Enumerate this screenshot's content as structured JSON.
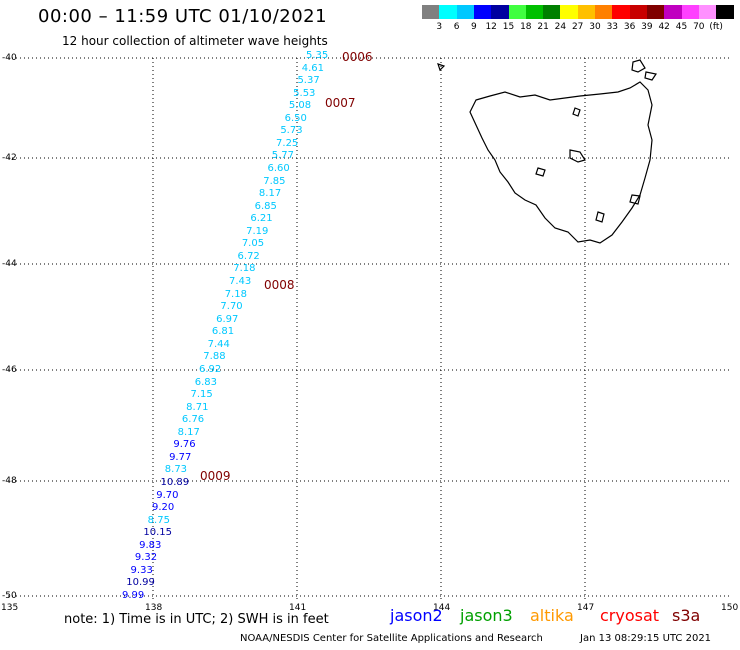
{
  "header": {
    "title": "00:00 – 11:59 UTC 01/10/2021",
    "subtitle": "12 hour collection of altimeter wave heights"
  },
  "colorbar": {
    "colors": [
      "#808080",
      "#00ffff",
      "#00c8ff",
      "#0000ff",
      "#0000a0",
      "#40ff40",
      "#00c000",
      "#008000",
      "#ffff00",
      "#ffc000",
      "#ff8000",
      "#ff0000",
      "#c80000",
      "#800000",
      "#c000c0",
      "#ff40ff",
      "#ff90ff",
      "#000000"
    ],
    "labels": [
      "3",
      "6",
      "9",
      "12",
      "15",
      "18",
      "21",
      "24",
      "27",
      "30",
      "33",
      "36",
      "39",
      "42",
      "45",
      "70",
      "(ft)"
    ]
  },
  "map": {
    "lat_labels": [
      "-40",
      "-42",
      "-44",
      "-46",
      "-48",
      "-50"
    ],
    "lon_labels": [
      "135",
      "138",
      "141",
      "144",
      "147",
      "150"
    ],
    "coastline_color": "#000000"
  },
  "wave_heights": [
    {
      "value": "5.35",
      "color": "#00c8ff"
    },
    {
      "value": "4.61",
      "color": "#00c8ff"
    },
    {
      "value": "5.37",
      "color": "#00c8ff"
    },
    {
      "value": "5.53",
      "color": "#00c8ff"
    },
    {
      "value": "5.08",
      "color": "#00c8ff"
    },
    {
      "value": "6.50",
      "color": "#00c8ff"
    },
    {
      "value": "5.73",
      "color": "#00c8ff"
    },
    {
      "value": "7.25",
      "color": "#00c8ff"
    },
    {
      "value": "5.77",
      "color": "#00c8ff"
    },
    {
      "value": "6.60",
      "color": "#00c8ff"
    },
    {
      "value": "7.85",
      "color": "#00c8ff"
    },
    {
      "value": "8.17",
      "color": "#00c8ff"
    },
    {
      "value": "6.85",
      "color": "#00c8ff"
    },
    {
      "value": "6.21",
      "color": "#00c8ff"
    },
    {
      "value": "7.19",
      "color": "#00c8ff"
    },
    {
      "value": "7.05",
      "color": "#00c8ff"
    },
    {
      "value": "6.72",
      "color": "#00c8ff"
    },
    {
      "value": "7.18",
      "color": "#00c8ff"
    },
    {
      "value": "7.43",
      "color": "#00c8ff"
    },
    {
      "value": "7.18",
      "color": "#00c8ff"
    },
    {
      "value": "7.70",
      "color": "#00c8ff"
    },
    {
      "value": "6.97",
      "color": "#00c8ff"
    },
    {
      "value": "6.81",
      "color": "#00c8ff"
    },
    {
      "value": "7.44",
      "color": "#00c8ff"
    },
    {
      "value": "7.88",
      "color": "#00c8ff"
    },
    {
      "value": "6.92",
      "color": "#00c8ff"
    },
    {
      "value": "6.83",
      "color": "#00c8ff"
    },
    {
      "value": "7.15",
      "color": "#00c8ff"
    },
    {
      "value": "8.71",
      "color": "#00c8ff"
    },
    {
      "value": "6.76",
      "color": "#00c8ff"
    },
    {
      "value": "8.17",
      "color": "#00c8ff"
    },
    {
      "value": "9.76",
      "color": "#0000ff"
    },
    {
      "value": "9.77",
      "color": "#0000ff"
    },
    {
      "value": "8.73",
      "color": "#00c8ff"
    },
    {
      "value": "10.89",
      "color": "#0000a0"
    },
    {
      "value": "9.70",
      "color": "#0000ff"
    },
    {
      "value": "9.20",
      "color": "#0000ff"
    },
    {
      "value": "8.75",
      "color": "#00c8ff"
    },
    {
      "value": "10.15",
      "color": "#0000a0"
    },
    {
      "value": "9.83",
      "color": "#0000ff"
    },
    {
      "value": "9.32",
      "color": "#0000ff"
    },
    {
      "value": "9.33",
      "color": "#0000ff"
    },
    {
      "value": "10.99",
      "color": "#0000a0"
    },
    {
      "value": "9.99",
      "color": "#0000ff"
    }
  ],
  "pass_times": [
    "0006",
    "0007",
    "0008",
    "0009"
  ],
  "footer": {
    "note": "note:  1) Time is in UTC;  2) SWH is in feet",
    "satellites": [
      {
        "name": "jason2",
        "color": "#0000ff"
      },
      {
        "name": "jason3",
        "color": "#00a000"
      },
      {
        "name": "altika",
        "color": "#ff9900"
      },
      {
        "name": "cryosat",
        "color": "#ff0000"
      },
      {
        "name": "s3a",
        "color": "#800000"
      }
    ],
    "credit": "NOAA/NESDIS Center for Satellite Applications and Research",
    "timestamp": "Jan 13 08:29:15 UTC 2021"
  }
}
